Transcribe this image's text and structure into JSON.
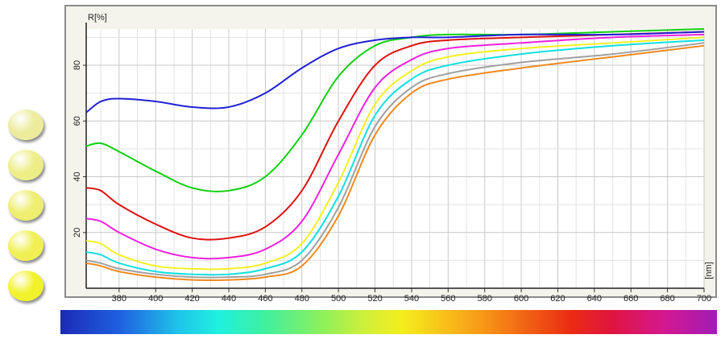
{
  "chart_data": {
    "type": "line",
    "ylabel": "R[%]",
    "xlabel": "[nm]",
    "xlim": [
      362,
      700
    ],
    "ylim": [
      0,
      93
    ],
    "grid": true,
    "x_ticks": [
      380,
      400,
      420,
      440,
      460,
      480,
      500,
      520,
      540,
      560,
      580,
      600,
      620,
      640,
      660,
      680,
      700
    ],
    "y_ticks": [
      20,
      40,
      60,
      80
    ],
    "series": [
      {
        "color": "#2020d8",
        "x": [
          362,
          370,
          380,
          400,
          420,
          440,
          460,
          480,
          500,
          520,
          540,
          560,
          600,
          650,
          700
        ],
        "y": [
          63,
          67,
          68,
          67,
          65,
          65,
          70,
          79,
          86,
          89,
          90,
          90,
          91,
          91,
          92
        ]
      },
      {
        "color": "#10d010",
        "x": [
          362,
          370,
          380,
          400,
          420,
          440,
          460,
          480,
          500,
          520,
          540,
          560,
          600,
          650,
          700
        ],
        "y": [
          51,
          52,
          49,
          42,
          36,
          35,
          40,
          55,
          76,
          87,
          90,
          91,
          91,
          92,
          93
        ]
      },
      {
        "color": "#e01010",
        "x": [
          362,
          370,
          380,
          400,
          420,
          440,
          460,
          480,
          500,
          520,
          540,
          560,
          600,
          650,
          700
        ],
        "y": [
          36,
          35,
          30,
          23,
          18,
          18,
          22,
          35,
          60,
          80,
          87,
          89,
          90,
          91,
          92
        ]
      },
      {
        "color": "#f020e0",
        "x": [
          362,
          370,
          380,
          400,
          420,
          440,
          460,
          480,
          500,
          520,
          540,
          560,
          600,
          650,
          700
        ],
        "y": [
          25,
          24,
          20,
          14,
          11,
          11,
          14,
          24,
          48,
          72,
          82,
          86,
          88,
          90,
          91
        ]
      },
      {
        "color": "#f4f020",
        "x": [
          362,
          370,
          380,
          400,
          420,
          440,
          460,
          480,
          500,
          520,
          540,
          560,
          600,
          650,
          700
        ],
        "y": [
          17,
          16,
          12,
          8,
          7,
          7,
          9,
          16,
          38,
          66,
          78,
          83,
          86,
          88,
          90
        ]
      },
      {
        "color": "#10e0e0",
        "x": [
          362,
          370,
          380,
          400,
          420,
          440,
          460,
          480,
          500,
          520,
          540,
          560,
          600,
          650,
          700
        ],
        "y": [
          13,
          12,
          9,
          6,
          5,
          5,
          7,
          13,
          33,
          62,
          75,
          80,
          84,
          87,
          89
        ]
      },
      {
        "color": "#a0a0a0",
        "x": [
          362,
          370,
          380,
          400,
          420,
          440,
          460,
          480,
          500,
          520,
          540,
          560,
          600,
          650,
          700
        ],
        "y": [
          10,
          9,
          7,
          5,
          4,
          4,
          5,
          10,
          29,
          58,
          72,
          77,
          81,
          84,
          88
        ]
      },
      {
        "color": "#f08a20",
        "x": [
          362,
          370,
          380,
          400,
          420,
          440,
          460,
          480,
          500,
          520,
          540,
          560,
          600,
          650,
          700
        ],
        "y": [
          9,
          8,
          6,
          4,
          3,
          3,
          4,
          8,
          26,
          55,
          70,
          75,
          79,
          83,
          87
        ]
      }
    ]
  },
  "swatches": [
    {
      "name": "swatch-1",
      "color": "#ecec9c"
    },
    {
      "name": "swatch-2",
      "color": "#eeee88"
    },
    {
      "name": "swatch-3",
      "color": "#eeee70"
    },
    {
      "name": "swatch-4",
      "color": "#f0f054"
    },
    {
      "name": "swatch-5",
      "color": "#f2f22c"
    }
  ]
}
